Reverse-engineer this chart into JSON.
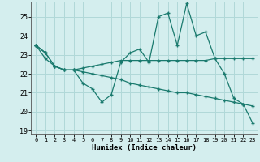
{
  "title": "",
  "xlabel": "Humidex (Indice chaleur)",
  "ylabel": "",
  "bg_color": "#d4eeee",
  "grid_color": "#b0d8d8",
  "line_color": "#1a7a6e",
  "xlim": [
    -0.5,
    23.5
  ],
  "ylim": [
    18.8,
    25.8
  ],
  "yticks": [
    19,
    20,
    21,
    22,
    23,
    24,
    25
  ],
  "xtick_labels": [
    "0",
    "1",
    "2",
    "3",
    "4",
    "5",
    "6",
    "7",
    "8",
    "9",
    "10",
    "11",
    "12",
    "13",
    "14",
    "15",
    "16",
    "17",
    "18",
    "19",
    "20",
    "21",
    "22",
    "23"
  ],
  "xticks": [
    0,
    1,
    2,
    3,
    4,
    5,
    6,
    7,
    8,
    9,
    10,
    11,
    12,
    13,
    14,
    15,
    16,
    17,
    18,
    19,
    20,
    21,
    22,
    23
  ],
  "series": [
    {
      "x": [
        0,
        1
      ],
      "y": [
        23.5,
        23.1
      ]
    },
    {
      "x": [
        0,
        1,
        2,
        3,
        4,
        5,
        6,
        7,
        8,
        9,
        10,
        11,
        12,
        13,
        14,
        15,
        16,
        17,
        18,
        19,
        20,
        21,
        22,
        23
      ],
      "y": [
        23.5,
        23.1,
        22.4,
        22.2,
        22.2,
        21.5,
        21.2,
        20.5,
        20.9,
        22.6,
        23.1,
        23.3,
        22.6,
        25.0,
        25.2,
        23.5,
        25.7,
        24.0,
        24.2,
        22.8,
        22.0,
        20.7,
        20.4,
        19.4
      ]
    },
    {
      "x": [
        0,
        1,
        2,
        3,
        4,
        5,
        6,
        7,
        8,
        9,
        10,
        11,
        12,
        13,
        14,
        15,
        16,
        17,
        18,
        19,
        20,
        21,
        22,
        23
      ],
      "y": [
        23.5,
        22.8,
        22.4,
        22.2,
        22.2,
        22.3,
        22.4,
        22.5,
        22.6,
        22.7,
        22.7,
        22.7,
        22.7,
        22.7,
        22.7,
        22.7,
        22.7,
        22.7,
        22.7,
        22.8,
        22.8,
        22.8,
        22.8,
        22.8
      ]
    },
    {
      "x": [
        0,
        1,
        2,
        3,
        4,
        5,
        6,
        7,
        8,
        9,
        10,
        11,
        12,
        13,
        14,
        15,
        16,
        17,
        18,
        19,
        20,
        21,
        22,
        23
      ],
      "y": [
        23.5,
        23.1,
        22.4,
        22.2,
        22.2,
        22.1,
        22.0,
        21.9,
        21.8,
        21.7,
        21.5,
        21.4,
        21.3,
        21.2,
        21.1,
        21.0,
        21.0,
        20.9,
        20.8,
        20.7,
        20.6,
        20.5,
        20.4,
        20.3
      ]
    }
  ]
}
